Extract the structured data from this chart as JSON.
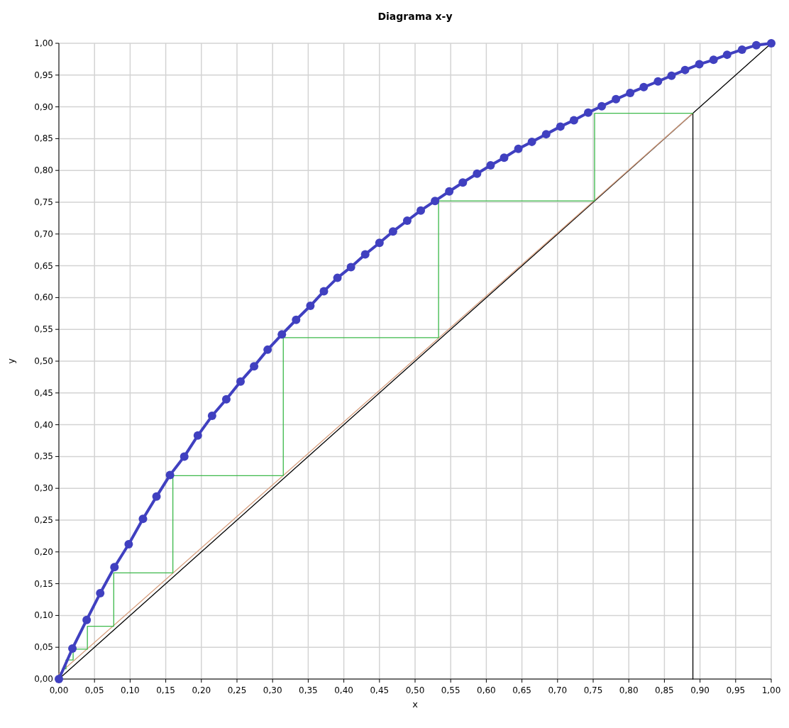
{
  "chart_data": {
    "type": "line",
    "title": "Diagrama x-y",
    "xlabel": "x",
    "ylabel": "y",
    "grid": true,
    "xlim": [
      0,
      1
    ],
    "ylim": [
      0,
      1
    ],
    "xticks": [
      {
        "value": 0,
        "label": "0,00"
      },
      {
        "value": 0.05,
        "label": "0,05"
      },
      {
        "value": 0.1,
        "label": "0,10"
      },
      {
        "value": 0.15,
        "label": "0,15"
      },
      {
        "value": 0.2,
        "label": "0,20"
      },
      {
        "value": 0.25,
        "label": "0,25"
      },
      {
        "value": 0.3,
        "label": "0,30"
      },
      {
        "value": 0.35,
        "label": "0,35"
      },
      {
        "value": 0.4,
        "label": "0,40"
      },
      {
        "value": 0.45,
        "label": "0,45"
      },
      {
        "value": 0.5,
        "label": "0,50"
      },
      {
        "value": 0.55,
        "label": "0,55"
      },
      {
        "value": 0.6,
        "label": "0,60"
      },
      {
        "value": 0.65,
        "label": "0,65"
      },
      {
        "value": 0.7,
        "label": "0,70"
      },
      {
        "value": 0.75,
        "label": "0,75"
      },
      {
        "value": 0.8,
        "label": "0,80"
      },
      {
        "value": 0.85,
        "label": "0,85"
      },
      {
        "value": 0.9,
        "label": "0,90"
      },
      {
        "value": 0.95,
        "label": "0,95"
      },
      {
        "value": 1,
        "label": "1,00"
      }
    ],
    "yticks": [
      {
        "value": 0,
        "label": "0,00"
      },
      {
        "value": 0.05,
        "label": "0,05"
      },
      {
        "value": 0.1,
        "label": "0,10"
      },
      {
        "value": 0.15,
        "label": "0,15"
      },
      {
        "value": 0.2,
        "label": "0,20"
      },
      {
        "value": 0.25,
        "label": "0,25"
      },
      {
        "value": 0.3,
        "label": "0,30"
      },
      {
        "value": 0.35,
        "label": "0,35"
      },
      {
        "value": 0.4,
        "label": "0,40"
      },
      {
        "value": 0.45,
        "label": "0,45"
      },
      {
        "value": 0.5,
        "label": "0,50"
      },
      {
        "value": 0.55,
        "label": "0,55"
      },
      {
        "value": 0.6,
        "label": "0,60"
      },
      {
        "value": 0.65,
        "label": "0,65"
      },
      {
        "value": 0.7,
        "label": "0,70"
      },
      {
        "value": 0.75,
        "label": "0,75"
      },
      {
        "value": 0.8,
        "label": "0,80"
      },
      {
        "value": 0.85,
        "label": "0,85"
      },
      {
        "value": 0.9,
        "label": "0,90"
      },
      {
        "value": 0.95,
        "label": "0,95"
      },
      {
        "value": 1,
        "label": "1,00"
      }
    ],
    "series": [
      {
        "color": "#000000",
        "line_style": "solid",
        "marker": "none",
        "x": [
          0,
          1
        ],
        "values": [
          0,
          1
        ]
      },
      {
        "color": "#d8a080",
        "line_style": "solid",
        "marker": "none",
        "x": [
          0,
          0.89
        ],
        "values": [
          0.008,
          0.89
        ]
      },
      {
        "color": "#000000",
        "line_style": "solid",
        "marker": "none",
        "x": [
          0.89,
          0.89
        ],
        "values": [
          0,
          0.89
        ]
      },
      {
        "color": "#3cb94a",
        "line_style": "solid",
        "marker": "none",
        "x": [
          0.89,
          0.752,
          0.752,
          0.533,
          0.533,
          0.315,
          0.315,
          0.16,
          0.16,
          0.077,
          0.077,
          0.04,
          0.04,
          0.02,
          0.02,
          0.01,
          0.01,
          0.005,
          0.005
        ],
        "values": [
          0.89,
          0.89,
          0.752,
          0.752,
          0.537,
          0.537,
          0.32,
          0.32,
          0.167,
          0.167,
          0.083,
          0.083,
          0.047,
          0.047,
          0.03,
          0.03,
          0.016,
          0.016,
          0.01
        ]
      },
      {
        "color": "#4040c0",
        "line_style": "solid",
        "marker": "circle",
        "x": [
          0,
          0.019,
          0.039,
          0.058,
          0.078,
          0.098,
          0.118,
          0.137,
          0.156,
          0.176,
          0.195,
          0.215,
          0.235,
          0.255,
          0.274,
          0.293,
          0.313,
          0.333,
          0.353,
          0.372,
          0.391,
          0.41,
          0.43,
          0.45,
          0.469,
          0.489,
          0.508,
          0.528,
          0.548,
          0.567,
          0.587,
          0.606,
          0.625,
          0.645,
          0.664,
          0.684,
          0.704,
          0.723,
          0.743,
          0.762,
          0.782,
          0.802,
          0.821,
          0.841,
          0.86,
          0.879,
          0.899,
          0.919,
          0.938,
          0.959,
          0.979,
          1
        ],
        "values": [
          0,
          0.048,
          0.093,
          0.135,
          0.176,
          0.212,
          0.252,
          0.287,
          0.321,
          0.35,
          0.383,
          0.414,
          0.44,
          0.468,
          0.492,
          0.518,
          0.542,
          0.565,
          0.587,
          0.61,
          0.631,
          0.648,
          0.668,
          0.686,
          0.704,
          0.721,
          0.737,
          0.752,
          0.767,
          0.781,
          0.795,
          0.808,
          0.82,
          0.834,
          0.845,
          0.857,
          0.869,
          0.879,
          0.891,
          0.901,
          0.912,
          0.922,
          0.931,
          0.94,
          0.949,
          0.958,
          0.967,
          0.974,
          0.982,
          0.99,
          0.997,
          1
        ]
      }
    ]
  }
}
